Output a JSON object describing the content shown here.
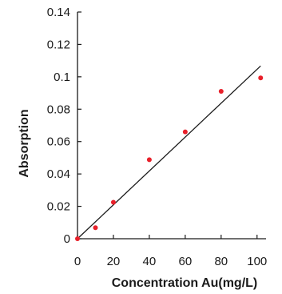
{
  "chart_data": {
    "type": "scatter",
    "xlabel": "Concentration Au(mg/L)",
    "ylabel": "Absorption",
    "xlim": [
      0,
      105
    ],
    "ylim": [
      0,
      0.14
    ],
    "x_ticks": [
      0,
      20,
      40,
      60,
      80,
      100
    ],
    "y_ticks": [
      0,
      0.02,
      0.04,
      0.06,
      0.08,
      0.1,
      0.12,
      0.14
    ],
    "x_tick_labels": [
      "0",
      "20",
      "40",
      "60",
      "80",
      "100"
    ],
    "y_tick_labels": [
      "0",
      "0.02",
      "0.04",
      "0.06",
      "0.08",
      "0.1",
      "0.12",
      "0.14"
    ],
    "grid": false,
    "points": [
      {
        "x": 0,
        "y": 0
      },
      {
        "x": 10,
        "y": 0.0068
      },
      {
        "x": 20,
        "y": 0.0225
      },
      {
        "x": 40,
        "y": 0.0488
      },
      {
        "x": 60,
        "y": 0.066
      },
      {
        "x": 80,
        "y": 0.091
      },
      {
        "x": 102,
        "y": 0.0993
      }
    ],
    "fit_line": {
      "x": [
        0,
        102
      ],
      "y": [
        0,
        0.1067
      ]
    },
    "colors": {
      "points": "#e8202a",
      "line": "#1a1a1a",
      "axes": "#1a1a1a"
    }
  }
}
